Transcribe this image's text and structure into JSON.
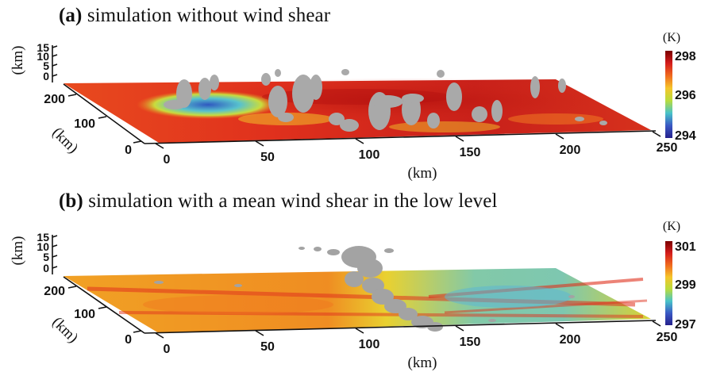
{
  "panels": [
    {
      "id": "a",
      "label": "(a)",
      "title": "simulation without wind shear",
      "x_ticks": [
        "0",
        "50",
        "100",
        "150",
        "200",
        "250"
      ],
      "y_ticks": [
        "0",
        "100",
        "200"
      ],
      "z_ticks": [
        "0",
        "5",
        "10",
        "15"
      ],
      "x_label": "(km)",
      "y_label": "(km)",
      "z_label": "(km)",
      "colorbar": {
        "unit": "(K)",
        "max": "298",
        "mid": "296",
        "min": "294",
        "colors": [
          "#7a0000",
          "#d41c1c",
          "#f06a1e",
          "#f5c52a",
          "#b9dc3c",
          "#49c3c9",
          "#3a58c4",
          "#25208c"
        ]
      }
    },
    {
      "id": "b",
      "label": "(b)",
      "title": "simulation with a mean wind shear in the low level",
      "x_ticks": [
        "0",
        "50",
        "100",
        "150",
        "200",
        "250"
      ],
      "y_ticks": [
        "0",
        "100",
        "200"
      ],
      "z_ticks": [
        "0",
        "5",
        "10",
        "15"
      ],
      "x_label": "(km)",
      "y_label": "(km)",
      "z_label": "(km)",
      "colorbar": {
        "unit": "(K)",
        "max": "301",
        "mid": "299",
        "min": "297",
        "colors": [
          "#7a0000",
          "#d41c1c",
          "#f06a1e",
          "#f5c52a",
          "#b9dc3c",
          "#49c3c9",
          "#3a58c4",
          "#25208c"
        ]
      }
    }
  ],
  "surface_colors": {
    "dark_red": "#c41c16",
    "red": "#e0311d",
    "orange": "#ee7a22",
    "yellow": "#f2c12a",
    "cyan": "#6cc5c2",
    "blue": "#3d6fc2",
    "cloud": "#a7a7a7"
  }
}
